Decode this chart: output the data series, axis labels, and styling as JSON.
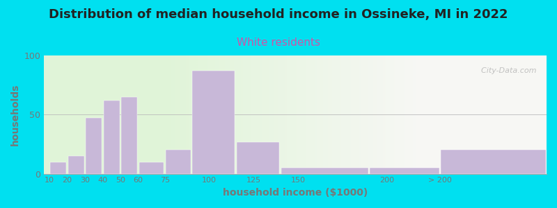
{
  "title": "Distribution of median household income in Ossineke, MI in 2022",
  "subtitle": "White residents",
  "xlabel": "household income ($1000)",
  "ylabel": "households",
  "bar_lefts": [
    10,
    20,
    30,
    40,
    50,
    60,
    75,
    90,
    115,
    140,
    190,
    230
  ],
  "bar_widths": [
    10,
    10,
    10,
    10,
    10,
    15,
    15,
    25,
    25,
    50,
    40,
    60
  ],
  "bar_values": [
    10,
    15,
    47,
    62,
    65,
    10,
    20,
    87,
    27,
    5,
    5,
    20
  ],
  "xtick_positions": [
    10,
    20,
    30,
    40,
    50,
    60,
    75,
    100,
    125,
    150,
    200,
    230
  ],
  "xtick_labels": [
    "10",
    "20",
    "30",
    "40",
    "50",
    "60",
    "75",
    "100",
    "125",
    "150",
    "200",
    "> 200"
  ],
  "bar_color": "#c8b8d8",
  "background_outer": "#00e0f0",
  "ylim": [
    0,
    100
  ],
  "yticks": [
    0,
    50,
    100
  ],
  "title_fontsize": 13,
  "subtitle_fontsize": 11,
  "subtitle_color": "#cc55aa",
  "title_color": "#222222",
  "axis_label_color": "#777777",
  "tick_color": "#777777",
  "watermark": "  City-Data.com"
}
